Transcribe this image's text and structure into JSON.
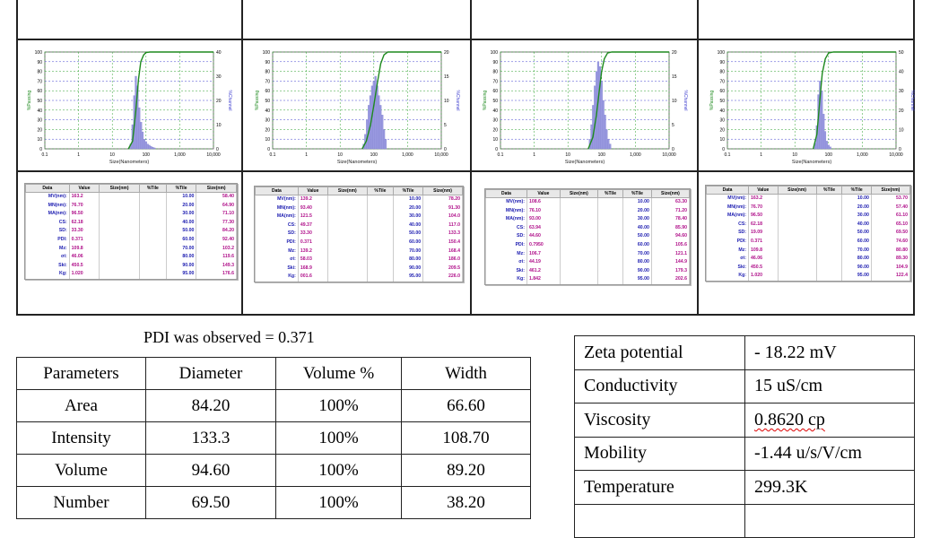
{
  "colors": {
    "cumulative_line": "#1e8a1e",
    "histogram": "#9a9ae0",
    "grid_green": "#2ca02c",
    "grid_blue": "#4040d0",
    "label_blue": "#1b1bb0",
    "value_magenta": "#b0108a"
  },
  "mini_header": [
    "Data",
    "Value",
    "Size(nm)",
    "%Tile",
    "%Tile",
    "Size(nm)"
  ],
  "panels": [
    {
      "chart_data": {
        "type": "bar",
        "xlabel": "Size(Nanometers)",
        "ylabel_left": "%Passing",
        "ylabel_right": "%Channel",
        "x_ticks": [
          "0.1",
          "1",
          "10",
          "100",
          "1,000",
          "10,000"
        ],
        "xlim": [
          0.1,
          10000
        ],
        "ylim_left": [
          0,
          100
        ],
        "ylim_right": [
          0,
          40
        ],
        "y_ticks_left": [
          0,
          10,
          20,
          30,
          40,
          50,
          60,
          70,
          80,
          90,
          100
        ],
        "y_ticks_right": [
          0,
          10,
          20,
          30,
          40
        ],
        "histogram": {
          "x": [
            35,
            40,
            45,
            50,
            56,
            63,
            71,
            79,
            89,
            100,
            112,
            126,
            141,
            158,
            178
          ],
          "values": [
            2,
            10,
            22,
            30,
            26,
            17,
            11,
            7,
            4,
            3,
            2,
            1.5,
            1,
            0.7,
            0.4
          ]
        },
        "cumulative": {
          "x": [
            30,
            40,
            50,
            60,
            70,
            85,
            100,
            130
          ],
          "values": [
            0,
            8,
            40,
            72,
            90,
            97,
            99.5,
            100
          ]
        }
      },
      "table": [
        [
          "MV(nm):",
          "163.2",
          "10.00",
          "58.40"
        ],
        [
          "MN(nm):",
          "76.70",
          "20.00",
          "64.90"
        ],
        [
          "MA(nm):",
          "96.50",
          "30.00",
          "71.10"
        ],
        [
          "CS:",
          "62.18",
          "40.00",
          "77.30"
        ],
        [
          "SD:",
          "33.30",
          "50.00",
          "84.20"
        ],
        [
          "PDI:",
          "0.371",
          "60.00",
          "92.40"
        ],
        [
          "Mz:",
          "109.8",
          "70.00",
          "103.2"
        ],
        [
          "σi:",
          "46.06",
          "80.00",
          "119.6"
        ],
        [
          "Ski:",
          "450.5",
          "90.00",
          "149.3"
        ],
        [
          "Kg:",
          "1.020",
          "95.00",
          "176.6"
        ]
      ]
    },
    {
      "chart_data": {
        "type": "bar",
        "xlabel": "Size(Nanometers)",
        "ylabel_left": "%Passing",
        "ylabel_right": "%Channel",
        "x_ticks": [
          "0.1",
          "1",
          "10",
          "100",
          "1,000",
          "10,000"
        ],
        "xlim": [
          0.1,
          10000
        ],
        "ylim_left": [
          0,
          100
        ],
        "ylim_right": [
          0,
          20
        ],
        "y_ticks_left": [
          0,
          10,
          20,
          30,
          40,
          50,
          60,
          70,
          80,
          90,
          100
        ],
        "y_ticks_right": [
          0,
          5,
          10,
          15,
          20
        ],
        "histogram": {
          "x": [
            50,
            56,
            63,
            71,
            79,
            89,
            100,
            112,
            126,
            141,
            158,
            178,
            200,
            224
          ],
          "values": [
            1,
            3,
            6,
            9,
            11,
            13,
            14,
            15,
            13,
            11,
            9,
            7,
            4,
            2
          ]
        },
        "cumulative": {
          "x": [
            45,
            60,
            80,
            100,
            130,
            160,
            200,
            260
          ],
          "values": [
            0,
            8,
            25,
            45,
            70,
            88,
            97,
            100
          ]
        }
      },
      "table": [
        [
          "MV(nm):",
          "139.2",
          "10.00",
          "78.20"
        ],
        [
          "MN(nm):",
          "93.40",
          "20.00",
          "91.30"
        ],
        [
          "MA(nm):",
          "121.5",
          "30.00",
          "104.0"
        ],
        [
          "CS:",
          "49.37",
          "40.00",
          "117.0"
        ],
        [
          "SD:",
          "33.30",
          "50.00",
          "133.3"
        ],
        [
          "PDI:",
          "0.371",
          "60.00",
          "150.4"
        ],
        [
          "Mz:",
          "139.2",
          "70.00",
          "168.4"
        ],
        [
          "σi:",
          "58.03",
          "80.00",
          "186.0"
        ],
        [
          "Ski:",
          "168.9",
          "90.00",
          "209.5"
        ],
        [
          "Kg:",
          "001.6",
          "95.00",
          "226.0"
        ]
      ]
    },
    {
      "chart_data": {
        "type": "bar",
        "xlabel": "Size(Nanometers)",
        "ylabel_left": "%Passing",
        "ylabel_right": "%Channel",
        "x_ticks": [
          "0.1",
          "1",
          "10",
          "100",
          "1,000",
          "10,000"
        ],
        "xlim": [
          0.1,
          10000
        ],
        "ylim_left": [
          0,
          100
        ],
        "ylim_right": [
          0,
          20
        ],
        "y_ticks_left": [
          0,
          10,
          20,
          30,
          40,
          50,
          60,
          70,
          80,
          90,
          100
        ],
        "y_ticks_right": [
          0,
          5,
          10,
          15,
          20
        ],
        "histogram": {
          "x": [
            45,
            50,
            56,
            63,
            71,
            79,
            89,
            100,
            112,
            126,
            141,
            158,
            178
          ],
          "values": [
            2,
            5,
            9,
            13,
            16,
            18,
            17,
            14,
            10,
            7,
            4,
            2,
            1
          ]
        },
        "cumulative": {
          "x": [
            40,
            55,
            70,
            85,
            100,
            120,
            150,
            200
          ],
          "values": [
            0,
            12,
            35,
            60,
            80,
            93,
            99,
            100
          ]
        }
      },
      "table": [
        [
          "MV(nm):",
          "108.6",
          "10.00",
          "63.30"
        ],
        [
          "MN(nm):",
          "76.10",
          "20.00",
          "71.20"
        ],
        [
          "MA(nm):",
          "93.00",
          "30.00",
          "78.40"
        ],
        [
          "CS:",
          "63.94",
          "40.00",
          "85.90"
        ],
        [
          "SD:",
          "44.60",
          "50.00",
          "94.60"
        ],
        [
          "PDI:",
          "0.7950",
          "60.00",
          "105.6"
        ],
        [
          "Mz:",
          "106.7",
          "70.00",
          "121.1"
        ],
        [
          "σi:",
          "44.19",
          "80.00",
          "144.9"
        ],
        [
          "Ski:",
          "461.2",
          "90.00",
          "179.3"
        ],
        [
          "Kg:",
          "1.842",
          "95.00",
          "202.6"
        ]
      ]
    },
    {
      "chart_data": {
        "type": "bar",
        "xlabel": "Size(Nanometers)",
        "ylabel_left": "%Passing",
        "ylabel_right": "%Channel",
        "x_ticks": [
          "0.1",
          "1",
          "10",
          "100",
          "1,000",
          "10,000"
        ],
        "xlim": [
          0.1,
          10000
        ],
        "ylim_left": [
          0,
          100
        ],
        "ylim_right": [
          0,
          50
        ],
        "y_ticks_left": [
          0,
          10,
          20,
          30,
          40,
          50,
          60,
          70,
          80,
          90,
          100
        ],
        "y_ticks_right": [
          0,
          10,
          20,
          30,
          40,
          50
        ],
        "histogram": {
          "x": [
            40,
            45,
            50,
            56,
            63,
            71,
            79,
            89,
            100,
            112
          ],
          "values": [
            3,
            12,
            28,
            35,
            30,
            18,
            9,
            4,
            2,
            1
          ]
        },
        "cumulative": {
          "x": [
            35,
            45,
            55,
            65,
            80,
            100,
            140
          ],
          "values": [
            0,
            15,
            50,
            78,
            93,
            99,
            100
          ]
        }
      },
      "table": [
        [
          "MV(nm):",
          "163.2",
          "10.00",
          "53.70"
        ],
        [
          "MN(nm):",
          "76.70",
          "20.00",
          "57.40"
        ],
        [
          "MA(nm):",
          "96.50",
          "30.00",
          "61.10"
        ],
        [
          "CS:",
          "62.18",
          "40.00",
          "65.10"
        ],
        [
          "SD:",
          "19.09",
          "50.00",
          "69.50"
        ],
        [
          "PDI:",
          "0.371",
          "60.00",
          "74.60"
        ],
        [
          "Mz:",
          "109.8",
          "70.00",
          "80.80"
        ],
        [
          "σi:",
          "46.06",
          "80.00",
          "89.30"
        ],
        [
          "Ski:",
          "450.5",
          "90.00",
          "104.9"
        ],
        [
          "Kg:",
          "1.020",
          "95.00",
          "122.4"
        ]
      ]
    }
  ],
  "pdi_note": "PDI was observed = 0.371",
  "params_table": {
    "headers": [
      "Parameters",
      "Diameter",
      "Volume %",
      "Width"
    ],
    "rows": [
      [
        "Area",
        "84.20",
        "100%",
        "66.60"
      ],
      [
        "Intensity",
        "133.3",
        "100%",
        "108.70"
      ],
      [
        "Volume",
        "94.60",
        "100%",
        "89.20"
      ],
      [
        "Number",
        "69.50",
        "100%",
        "38.20"
      ]
    ]
  },
  "zeta_table": [
    [
      "Zeta potential",
      "- 18.22 mV"
    ],
    [
      "Conductivity",
      "15 uS/cm"
    ],
    [
      "Viscosity",
      "0.8620 cp"
    ],
    [
      "Mobility",
      "-1.44 u/s/V/cm"
    ],
    [
      "Temperature",
      "299.3K"
    ]
  ]
}
